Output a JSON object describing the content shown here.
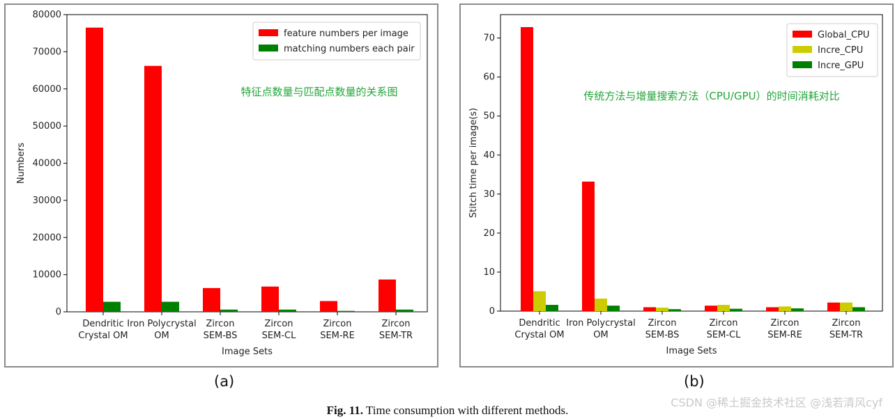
{
  "chart_data": [
    {
      "type": "bar",
      "panel": "(a)",
      "categories": [
        [
          "Dendritic",
          "Crystal OM"
        ],
        [
          "Iron Polycrystal",
          "OM"
        ],
        [
          "Zircon",
          "SEM-BS"
        ],
        [
          "Zircon",
          "SEM-CL"
        ],
        [
          "Zircon",
          "SEM-RE"
        ],
        [
          "Zircon",
          "SEM-TR"
        ]
      ],
      "series": [
        {
          "name": "feature numbers per image",
          "color": "#ff0000",
          "values": [
            76500,
            66200,
            6400,
            6800,
            2900,
            8700
          ]
        },
        {
          "name": "matching numbers each pair",
          "color": "#008000",
          "values": [
            2700,
            2700,
            600,
            600,
            250,
            600
          ]
        }
      ],
      "ylim": [
        0,
        80000
      ],
      "yticks": [
        0,
        10000,
        20000,
        30000,
        40000,
        50000,
        60000,
        70000,
        80000
      ],
      "xlabel": "Image Sets",
      "ylabel": "Numbers",
      "annotation": "特征点数量与匹配点数量的关系图",
      "legend": "top-right"
    },
    {
      "type": "bar",
      "panel": "(b)",
      "categories": [
        [
          "Dendritic",
          "Crystal OM"
        ],
        [
          "Iron Polycrystal",
          "OM"
        ],
        [
          "Zircon",
          "SEM-BS"
        ],
        [
          "Zircon",
          "SEM-CL"
        ],
        [
          "Zircon",
          "SEM-RE"
        ],
        [
          "Zircon",
          "SEM-TR"
        ]
      ],
      "series": [
        {
          "name": "Global_CPU",
          "color": "#ff0000",
          "values": [
            72.8,
            33.2,
            1.0,
            1.4,
            1.0,
            2.2
          ]
        },
        {
          "name": "Incre_CPU",
          "color": "#cccc00",
          "values": [
            5.1,
            3.2,
            0.9,
            1.6,
            1.2,
            2.2
          ]
        },
        {
          "name": "Incre_GPU",
          "color": "#008000",
          "values": [
            1.6,
            1.4,
            0.5,
            0.6,
            0.7,
            1.0
          ]
        }
      ],
      "ylim": [
        0,
        76
      ],
      "yticks": [
        0,
        10,
        20,
        30,
        40,
        50,
        60,
        70
      ],
      "xlabel": "Image Sets",
      "ylabel": "Stitch time per image(s)",
      "annotation": "传统方法与增量搜索方法（CPU/GPU）的时间消耗对比",
      "legend": "top-right"
    }
  ],
  "panel_labels": {
    "a": "(a)",
    "b": "(b)"
  },
  "caption": {
    "bold": "Fig. 11.",
    "text": " Time consumption with different methods."
  },
  "watermark": "CSDN @稀土掘金技术社区 @浅若清风cyf"
}
